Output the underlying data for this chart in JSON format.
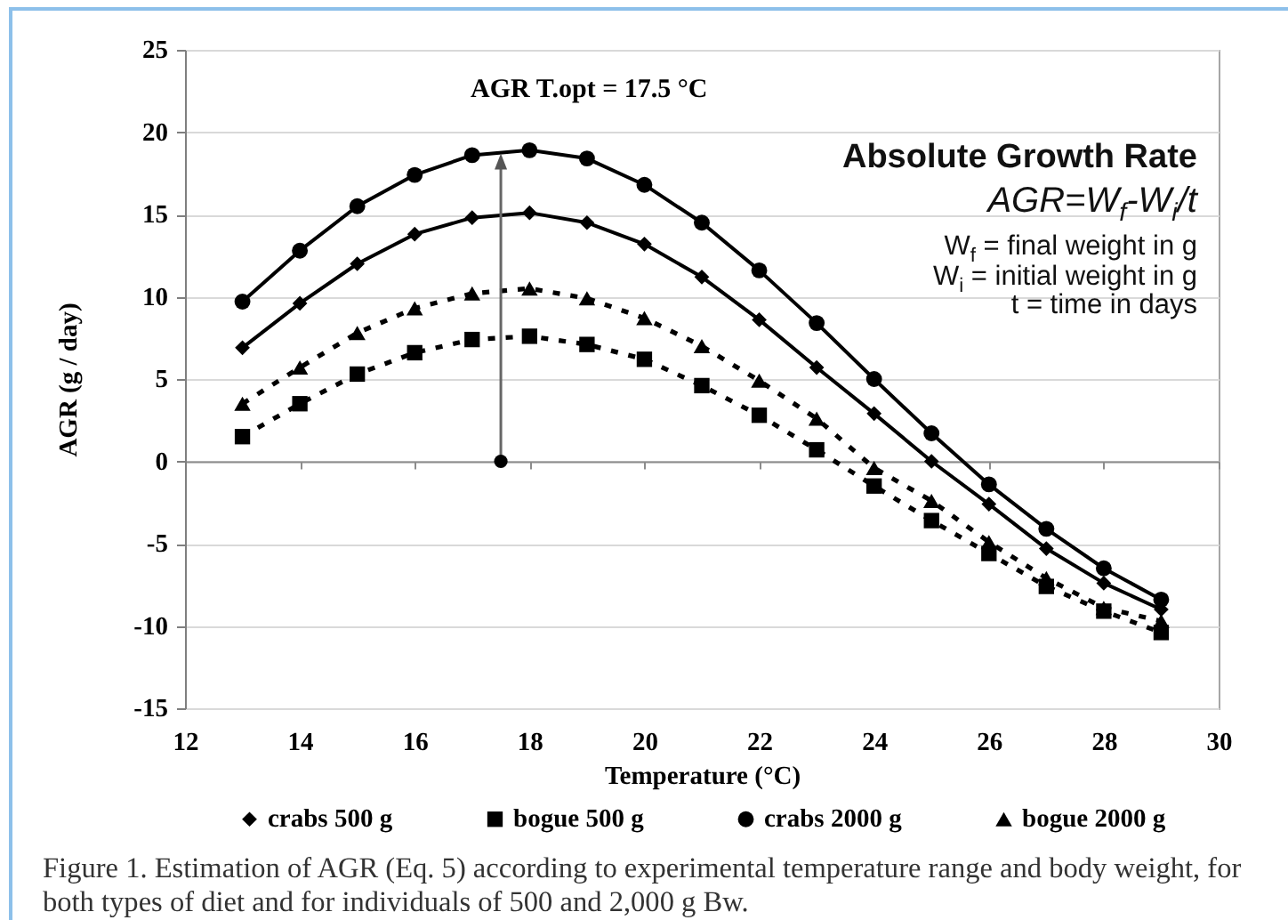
{
  "chart_data": {
    "type": "line",
    "xlabel": "Temperature (°C)",
    "ylabel": "AGR (g / day)",
    "x": [
      13,
      14,
      15,
      16,
      17,
      18,
      19,
      20,
      21,
      22,
      23,
      24,
      25,
      26,
      27,
      28,
      29
    ],
    "series": [
      {
        "name": "crabs 500 g",
        "color": "#000000",
        "marker": "diamond",
        "line_style": "solid",
        "values": [
          6.9,
          9.6,
          12.0,
          13.8,
          14.8,
          15.1,
          14.5,
          13.2,
          11.2,
          8.6,
          5.7,
          2.9,
          0.0,
          -2.6,
          -5.3,
          -7.4,
          -9.0
        ]
      },
      {
        "name": "bogue 500 g",
        "color": "#000000",
        "marker": "square",
        "line_style": "dashed",
        "values": [
          1.5,
          3.5,
          5.3,
          6.6,
          7.4,
          7.6,
          7.1,
          6.2,
          4.6,
          2.8,
          0.7,
          -1.5,
          -3.6,
          -5.6,
          -7.6,
          -9.1,
          -10.4
        ]
      },
      {
        "name": "crabs 2000 g",
        "color": "#000000",
        "marker": "circle",
        "line_style": "solid",
        "values": [
          9.7,
          12.8,
          15.5,
          17.4,
          18.6,
          18.9,
          18.4,
          16.8,
          14.5,
          11.6,
          8.4,
          5.0,
          1.7,
          -1.4,
          -4.1,
          -6.5,
          -8.4
        ]
      },
      {
        "name": "bogue 2000 g",
        "color": "#000000",
        "marker": "triangle",
        "line_style": "dashed",
        "values": [
          3.5,
          5.7,
          7.8,
          9.3,
          10.2,
          10.5,
          9.9,
          8.7,
          7.0,
          4.9,
          2.6,
          -0.4,
          -2.4,
          -4.9,
          -7.1,
          -8.9,
          -9.7
        ]
      }
    ],
    "xlim": [
      12,
      30
    ],
    "xticks": [
      12,
      14,
      16,
      18,
      20,
      22,
      24,
      26,
      28,
      30
    ],
    "ylim": [
      -15,
      25
    ],
    "yticks": [
      -15,
      -10,
      -5,
      0,
      5,
      10,
      15,
      20,
      25
    ],
    "grid": "y",
    "legend": "bottom",
    "annotations": [
      {
        "text": "AGR T.opt = 17.5 °C",
        "x": 17.5,
        "y": 18.7
      },
      "Absolute Growth Rate",
      "AGR=W$_{f}$-W$_{i}$/t",
      "W$_{f}$ = final weight in g",
      "W$_{i}$ = initial weight in g",
      "t = time in days",
      "Figure 1. Estimation of AGR (Eq. 5) according to experimental temperature range and body weight, for both types of diet and for individuals of 500 and 2,000 g Bw."
    ]
  }
}
